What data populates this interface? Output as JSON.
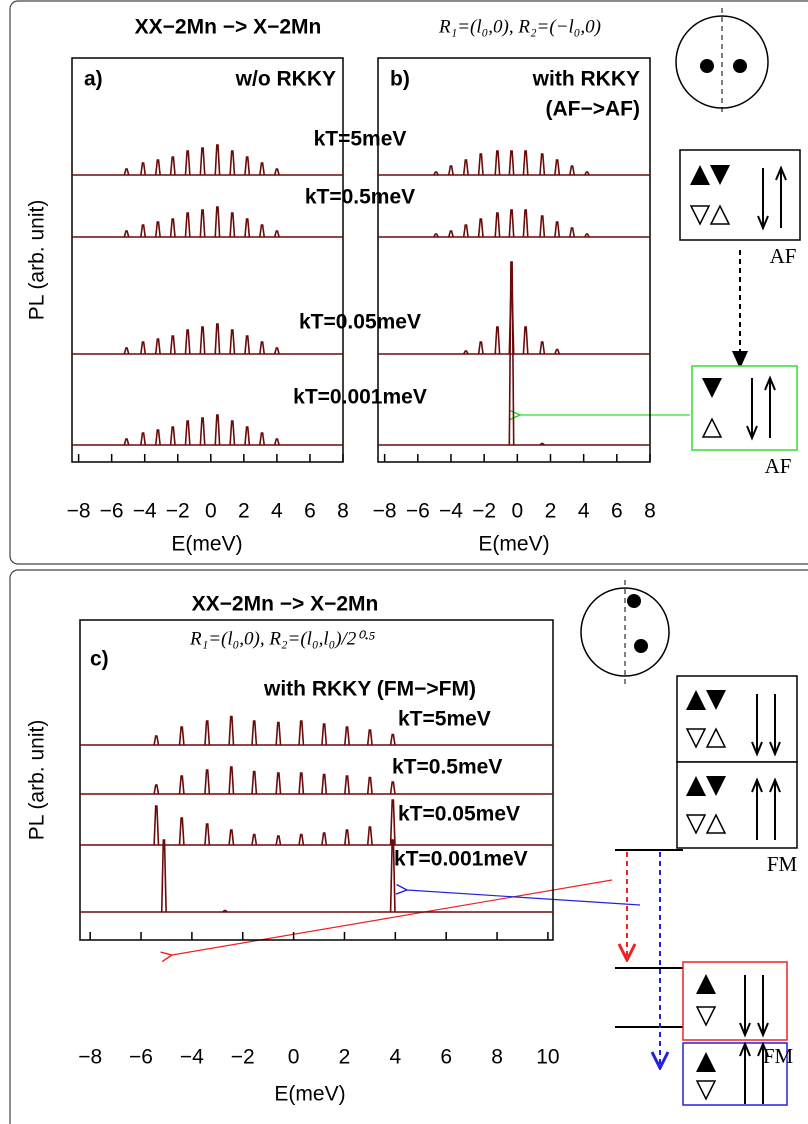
{
  "chart_data": [
    {
      "type": "peaks",
      "title": "XX−2Mn −> X−2Mn",
      "panel_label": "a)",
      "annotations": [
        "w/o RKKY"
      ],
      "xlabel": "E(meV)",
      "ylabel": "PL (arb. unit)",
      "xlim": [
        -8.4,
        8
      ],
      "xticks": [
        {
          "value": -8,
          "label": "−8"
        },
        {
          "value": -6,
          "label": "−6"
        },
        {
          "value": -4,
          "label": "−4"
        },
        {
          "value": -2,
          "label": "−2"
        },
        0,
        2,
        4,
        6,
        8
      ],
      "series": [
        {
          "name": "kT=5meV",
          "color": "#6b0a0a",
          "x": [
            -5.1,
            -4.1,
            -3.2,
            -2.3,
            -1.4,
            -0.5,
            0.4,
            1.3,
            2.2,
            3.1,
            4.0
          ],
          "values": [
            0.2,
            0.4,
            0.5,
            0.6,
            0.8,
            0.9,
            1.0,
            0.8,
            0.6,
            0.4,
            0.2
          ]
        },
        {
          "name": "kT=0.5meV",
          "color": "#6b0a0a",
          "x": [
            -5.1,
            -4.1,
            -3.2,
            -2.3,
            -1.4,
            -0.5,
            0.4,
            1.3,
            2.2,
            3.1,
            4.0
          ],
          "values": [
            0.2,
            0.4,
            0.5,
            0.6,
            0.8,
            0.9,
            1.0,
            0.8,
            0.6,
            0.4,
            0.2
          ]
        },
        {
          "name": "kT=0.05meV",
          "color": "#6b0a0a",
          "x": [
            -5.1,
            -4.1,
            -3.2,
            -2.3,
            -1.4,
            -0.5,
            0.4,
            1.3,
            2.2,
            3.1,
            4.0
          ],
          "values": [
            0.2,
            0.4,
            0.5,
            0.6,
            0.8,
            0.9,
            1.0,
            0.8,
            0.6,
            0.4,
            0.2
          ]
        },
        {
          "name": "kT=0.001meV",
          "color": "#6b0a0a",
          "x": [
            -5.1,
            -4.1,
            -3.2,
            -2.3,
            -1.4,
            -0.5,
            0.4,
            1.3,
            2.2,
            3.1,
            4.0
          ],
          "values": [
            0.2,
            0.4,
            0.5,
            0.6,
            0.8,
            0.9,
            1.0,
            0.8,
            0.6,
            0.4,
            0.2
          ]
        }
      ]
    },
    {
      "type": "peaks",
      "subtitle": "R₁=(l₀,0), R₂=(−l₀,0)",
      "panel_label": "b)",
      "annotations": [
        "with RKKY",
        "(AF−>AF)"
      ],
      "xlabel": "E(meV)",
      "xlim": [
        -8.4,
        8
      ],
      "xticks": [
        {
          "value": -8,
          "label": "−8"
        },
        {
          "value": -6,
          "label": "−6"
        },
        {
          "value": -4,
          "label": "−4"
        },
        {
          "value": -2,
          "label": "−2"
        },
        0,
        2,
        4,
        6,
        8
      ],
      "series": [
        {
          "color": "#6b0a0a",
          "x": [
            -4.9,
            -4.0,
            -3.1,
            -2.2,
            -1.2,
            -0.35,
            0.5,
            1.5,
            2.4,
            3.3,
            4.2
          ],
          "values": [
            0.1,
            0.3,
            0.5,
            0.7,
            0.8,
            0.8,
            0.8,
            0.7,
            0.5,
            0.3,
            0.1
          ]
        },
        {
          "color": "#6b0a0a",
          "x": [
            -4.9,
            -4.0,
            -3.1,
            -2.2,
            -1.2,
            -0.35,
            0.5,
            1.5,
            2.4,
            3.3,
            4.2
          ],
          "values": [
            0.1,
            0.2,
            0.4,
            0.6,
            0.8,
            0.9,
            0.9,
            0.7,
            0.5,
            0.3,
            0.1
          ]
        },
        {
          "color": "#6b0a0a",
          "x": [
            -3.1,
            -2.2,
            -1.2,
            -0.35,
            0.5,
            1.5,
            2.4
          ],
          "values": [
            0.1,
            0.4,
            0.9,
            2.1,
            0.9,
            0.4,
            0.15
          ]
        },
        {
          "color": "#6b0a0a",
          "x": [
            -0.35,
            1.5
          ],
          "values": [
            6.1,
            0.05
          ]
        }
      ]
    },
    {
      "type": "peaks",
      "title": "XX−2Mn −> X−2Mn",
      "subtitle": "R₁=(l₀,0), R₂=(l₀,l₀)/2⁰·⁵",
      "panel_label": "c)",
      "annotations": [
        "with RKKY (FM−>FM)"
      ],
      "xlabel": "E(meV)",
      "ylabel": "PL (arb. unit)",
      "xlim": [
        -8.4,
        10.2
      ],
      "xticks": [
        {
          "value": -8,
          "label": "−8"
        },
        {
          "value": -6,
          "label": "−6"
        },
        {
          "value": -4,
          "label": "−4"
        },
        {
          "value": -2,
          "label": "−2"
        },
        0,
        2,
        4,
        6,
        8,
        10
      ],
      "series": [
        {
          "name": "kT=5meV",
          "color": "#6b0a0a",
          "x": [
            -5.4,
            -4.4,
            -3.4,
            -2.45,
            -1.55,
            -0.6,
            0.3,
            1.2,
            2.1,
            3.0,
            3.9
          ],
          "values": [
            0.3,
            0.6,
            0.8,
            0.95,
            0.8,
            0.75,
            0.8,
            0.7,
            0.6,
            0.5,
            0.35
          ]
        },
        {
          "name": "kT=0.5meV",
          "color": "#6b0a0a",
          "x": [
            -5.4,
            -4.4,
            -3.4,
            -2.45,
            -1.55,
            -0.6,
            0.3,
            1.2,
            2.1,
            3.0,
            3.9
          ],
          "values": [
            0.3,
            0.6,
            0.8,
            0.9,
            0.75,
            0.7,
            0.7,
            0.65,
            0.6,
            0.55,
            0.4
          ]
        },
        {
          "name": "kT=0.05meV",
          "color": "#6b0a0a",
          "x": [
            -5.4,
            -4.4,
            -3.4,
            -2.45,
            -1.55,
            -0.6,
            0.3,
            1.2,
            2.1,
            3.0,
            3.9
          ],
          "values": [
            1.3,
            0.9,
            0.7,
            0.5,
            0.35,
            0.3,
            0.35,
            0.4,
            0.5,
            0.6,
            1.5
          ]
        },
        {
          "name": "kT=0.001meV",
          "color": "#6b0a0a",
          "x": [
            -5.1,
            -2.7,
            3.9
          ],
          "values": [
            2.4,
            0.05,
            2.4
          ]
        }
      ]
    }
  ],
  "diagram": {
    "labels": [
      "AF",
      "AF",
      "FM",
      "FM"
    ]
  }
}
